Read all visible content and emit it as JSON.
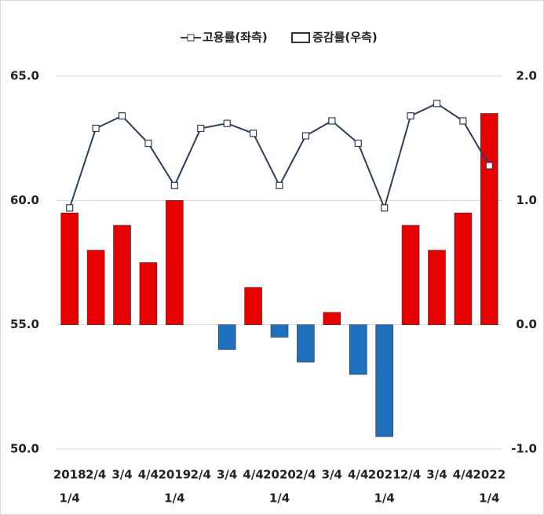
{
  "chart_data": {
    "type": "bar_line",
    "categories": [
      [
        "2018",
        "1/4"
      ],
      [
        "2/4"
      ],
      [
        "3/4"
      ],
      [
        "4/4"
      ],
      [
        "2019",
        "1/4"
      ],
      [
        "2/4"
      ],
      [
        "3/4"
      ],
      [
        "4/4"
      ],
      [
        "2020",
        "1/4"
      ],
      [
        "2/4"
      ],
      [
        "3/4"
      ],
      [
        "4/4"
      ],
      [
        "2021",
        "1/4"
      ],
      [
        "2/4"
      ],
      [
        "3/4"
      ],
      [
        "4/4"
      ],
      [
        "2022",
        "1/4"
      ]
    ],
    "series": [
      {
        "name": "고용률(좌측)",
        "type": "line",
        "axis": "y",
        "color": "#2e3e5c",
        "values": [
          59.7,
          62.9,
          63.4,
          62.3,
          60.6,
          62.9,
          63.1,
          62.7,
          60.6,
          62.6,
          63.2,
          62.3,
          59.7,
          63.4,
          63.9,
          63.2,
          61.4
        ]
      },
      {
        "name": "증감률(우측)",
        "type": "bar",
        "axis": "y2",
        "color": "#e60000",
        "negative_color": "#1f6fbf",
        "values": [
          0.9,
          0.6,
          0.8,
          0.5,
          1.0,
          0.0,
          -0.2,
          0.3,
          -0.1,
          -0.3,
          0.1,
          -0.4,
          -0.9,
          0.8,
          0.6,
          0.9,
          1.7
        ]
      }
    ],
    "ylim": [
      50,
      65
    ],
    "yticks": [
      {
        "value": 50,
        "label": "50.0"
      },
      {
        "value": 55,
        "label": "55.0"
      },
      {
        "value": 60,
        "label": "60.0"
      },
      {
        "value": 65,
        "label": "65.0"
      }
    ],
    "y2lim": [
      -1,
      2
    ],
    "y2ticks": [
      {
        "value": -1,
        "label": "-1.0"
      },
      {
        "value": 0,
        "label": "0.0"
      },
      {
        "value": 1,
        "label": "1.0"
      },
      {
        "value": 2,
        "label": "2.0"
      }
    ],
    "grid": true,
    "legend": "top"
  }
}
